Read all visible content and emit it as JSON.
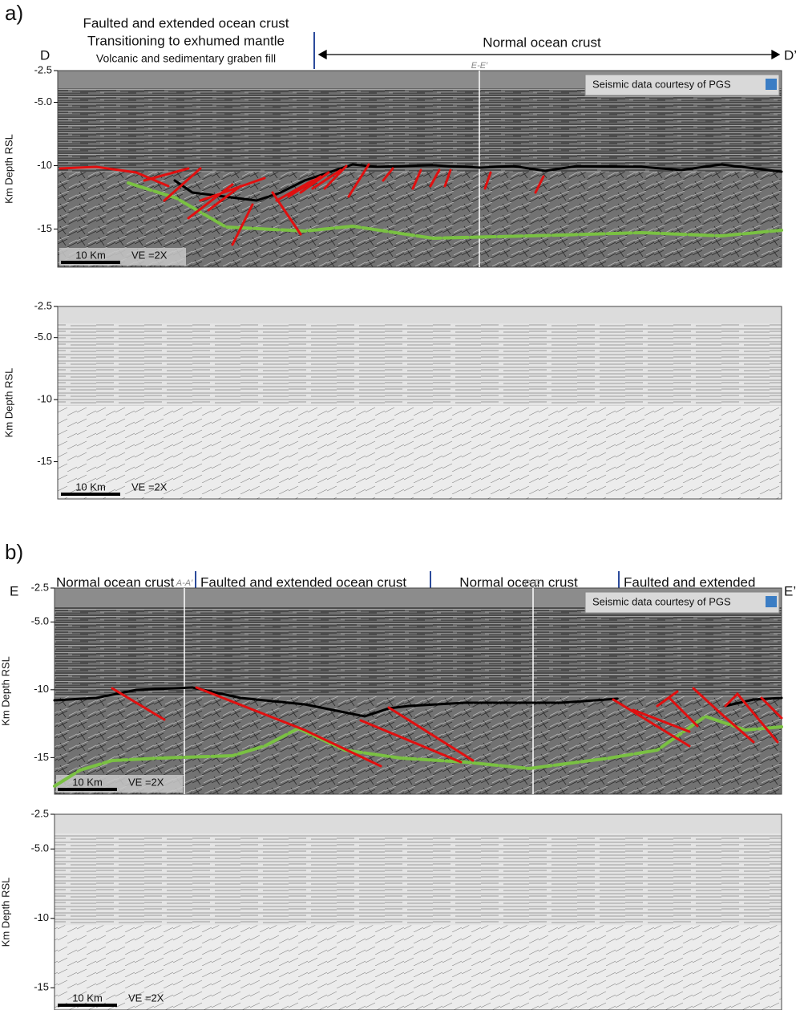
{
  "panels": [
    {
      "label": "a)",
      "left_end": "D",
      "right_end": "D’",
      "zones": [
        "Faulted and extended ocean crust",
        "Transitioning to exhumed mantle",
        "Volcanic and sedimentary graben fill",
        "Normal ocean crust"
      ],
      "sections": [
        {
          "kind": "interpreted",
          "ylabel": "Km Depth RSL",
          "ylim": [
            -2.5,
            -18
          ],
          "yticks": [
            -2.5,
            {
              "value": -5,
              "label": "-5.0"
            },
            -10,
            -15
          ],
          "profile": "E-E′",
          "credit": "Seismic data courtesy of PGS",
          "scale_bar": "10 Km",
          "ve": "VE =2X"
        },
        {
          "kind": "raw",
          "ylabel": "Km Depth RSL",
          "ylim": [
            -2.5,
            -18
          ],
          "yticks": [
            -2.5,
            {
              "value": -5,
              "label": "-5.0"
            },
            -10,
            -15
          ],
          "scale_bar": "10 Km",
          "ve": "VE =2X"
        }
      ]
    },
    {
      "label": "b)",
      "left_end": "E",
      "right_end": "E’",
      "zones": [
        "Normal ocean crust",
        "Faulted and extended ocean crust",
        "Normal ocean crust",
        "Faulted and extended"
      ],
      "sections": [
        {
          "kind": "interpreted",
          "ylabel": "Km Depth RSL",
          "ylim": [
            -2.5,
            -17.7
          ],
          "yticks": [
            -2.5,
            {
              "value": -5,
              "label": "-5.0"
            },
            -10,
            -15
          ],
          "profiles": [
            "A-A′",
            "D-D′"
          ],
          "credit": "Seismic data courtesy of PGS",
          "scale_bar": "10 Km",
          "ve": "VE =2X"
        },
        {
          "kind": "raw",
          "ylabel": "Km Depth RSL",
          "ylim": [
            -2.5,
            -16.6
          ],
          "yticks": [
            -2.5,
            {
              "value": -5,
              "label": "-5.0"
            },
            -10,
            -15
          ],
          "scale_bar": "10 Km",
          "ve": "VE =2X"
        }
      ]
    }
  ]
}
